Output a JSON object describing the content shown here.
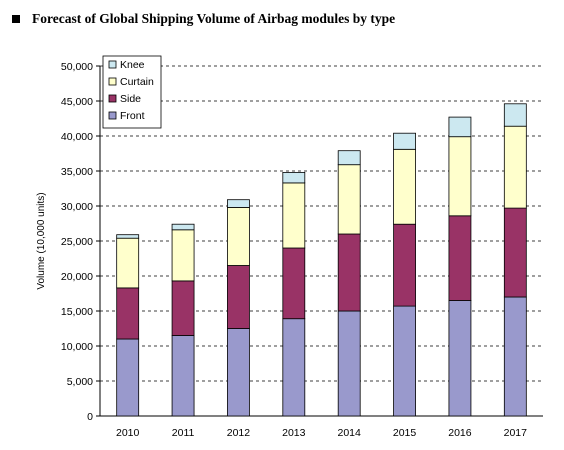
{
  "heading": {
    "title": "Forecast of Global Shipping Volume of Airbag modules by type"
  },
  "chart_data": {
    "type": "bar",
    "stacked": true,
    "title": "Forecast of Global Shipping Volume of Airbag modules by type",
    "xlabel": "",
    "ylabel": "Volume (10,000 units)",
    "ylim": [
      0,
      50000
    ],
    "yticks": [
      0,
      5000,
      10000,
      15000,
      20000,
      25000,
      30000,
      35000,
      40000,
      45000,
      50000
    ],
    "ytick_labels": [
      "0",
      "5,000",
      "10,000",
      "15,000",
      "20,000",
      "25,000",
      "30,000",
      "35,000",
      "40,000",
      "45,000",
      "50,000"
    ],
    "grid": "horizontal dashed",
    "legend_position": "top-left",
    "categories": [
      "2010",
      "2011",
      "2012",
      "2013",
      "2014",
      "2015",
      "2016",
      "2017"
    ],
    "series": [
      {
        "name": "Front",
        "color": "#9999cc",
        "values": [
          11000,
          11500,
          12500,
          13900,
          15000,
          15700,
          16500,
          17000
        ]
      },
      {
        "name": "Side",
        "color": "#993366",
        "values": [
          7300,
          7800,
          9000,
          10100,
          11000,
          11700,
          12100,
          12700
        ]
      },
      {
        "name": "Curtain",
        "color": "#ffffcc",
        "values": [
          7100,
          7300,
          8300,
          9300,
          9900,
          10700,
          11300,
          11700
        ]
      },
      {
        "name": "Knee",
        "color": "#cce8f0",
        "values": [
          500,
          800,
          1100,
          1500,
          2000,
          2300,
          2800,
          3200
        ]
      }
    ],
    "legend_order": [
      "Knee",
      "Curtain",
      "Side",
      "Front"
    ]
  }
}
